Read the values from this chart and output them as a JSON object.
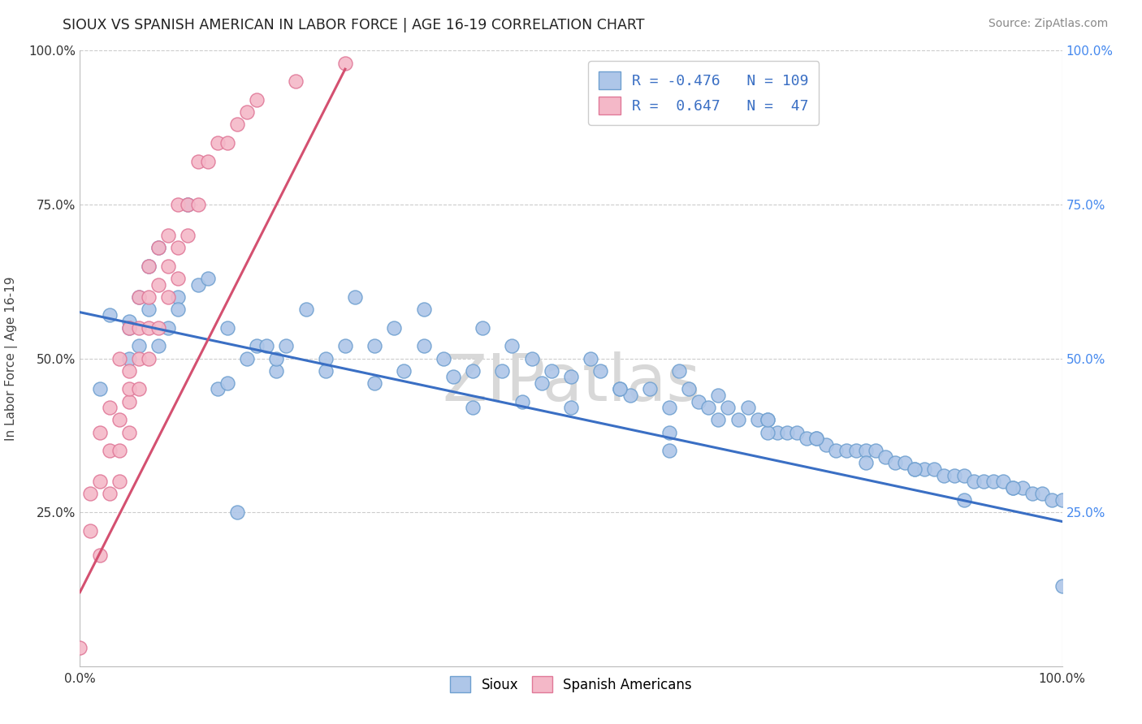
{
  "title": "SIOUX VS SPANISH AMERICAN IN LABOR FORCE | AGE 16-19 CORRELATION CHART",
  "source": "Source: ZipAtlas.com",
  "ylabel": "In Labor Force | Age 16-19",
  "xlim": [
    0.0,
    1.0
  ],
  "ylim": [
    0.0,
    1.0
  ],
  "sioux_R": -0.476,
  "sioux_N": 109,
  "spanish_R": 0.647,
  "spanish_N": 47,
  "sioux_color": "#aec6e8",
  "sioux_edge": "#6fa0d0",
  "spanish_color": "#f4b8c8",
  "spanish_edge": "#e07898",
  "sioux_line_color": "#3a6fc4",
  "spanish_line_color": "#d45070",
  "watermark_color": "#d8d8d8",
  "background_color": "#ffffff",
  "grid_color": "#cccccc",
  "right_tick_color": "#4488ee",
  "sioux_x": [
    0.02,
    0.03,
    0.05,
    0.05,
    0.06,
    0.06,
    0.07,
    0.07,
    0.08,
    0.08,
    0.09,
    0.1,
    0.1,
    0.11,
    0.12,
    0.13,
    0.14,
    0.15,
    0.16,
    0.17,
    0.18,
    0.19,
    0.2,
    0.21,
    0.23,
    0.25,
    0.27,
    0.28,
    0.3,
    0.32,
    0.33,
    0.35,
    0.37,
    0.38,
    0.4,
    0.41,
    0.43,
    0.44,
    0.46,
    0.47,
    0.48,
    0.5,
    0.52,
    0.53,
    0.55,
    0.56,
    0.58,
    0.6,
    0.61,
    0.62,
    0.63,
    0.64,
    0.65,
    0.66,
    0.67,
    0.68,
    0.69,
    0.7,
    0.71,
    0.72,
    0.73,
    0.74,
    0.75,
    0.76,
    0.77,
    0.78,
    0.79,
    0.8,
    0.81,
    0.82,
    0.83,
    0.84,
    0.85,
    0.86,
    0.87,
    0.88,
    0.89,
    0.9,
    0.91,
    0.92,
    0.93,
    0.94,
    0.95,
    0.96,
    0.97,
    0.98,
    0.99,
    1.0,
    0.65,
    0.7,
    0.35,
    0.45,
    0.55,
    0.25,
    0.15,
    0.05,
    0.75,
    0.85,
    0.95,
    0.4,
    0.5,
    0.6,
    0.2,
    0.3,
    0.8,
    0.9,
    1.0,
    0.7,
    0.6
  ],
  "sioux_y": [
    0.45,
    0.57,
    0.56,
    0.55,
    0.6,
    0.52,
    0.65,
    0.58,
    0.52,
    0.68,
    0.55,
    0.6,
    0.58,
    0.75,
    0.62,
    0.63,
    0.45,
    0.55,
    0.25,
    0.5,
    0.52,
    0.52,
    0.48,
    0.52,
    0.58,
    0.5,
    0.52,
    0.6,
    0.46,
    0.55,
    0.48,
    0.58,
    0.5,
    0.47,
    0.48,
    0.55,
    0.48,
    0.52,
    0.5,
    0.46,
    0.48,
    0.47,
    0.5,
    0.48,
    0.45,
    0.44,
    0.45,
    0.42,
    0.48,
    0.45,
    0.43,
    0.42,
    0.4,
    0.42,
    0.4,
    0.42,
    0.4,
    0.4,
    0.38,
    0.38,
    0.38,
    0.37,
    0.37,
    0.36,
    0.35,
    0.35,
    0.35,
    0.35,
    0.35,
    0.34,
    0.33,
    0.33,
    0.32,
    0.32,
    0.32,
    0.31,
    0.31,
    0.31,
    0.3,
    0.3,
    0.3,
    0.3,
    0.29,
    0.29,
    0.28,
    0.28,
    0.27,
    0.27,
    0.44,
    0.38,
    0.52,
    0.43,
    0.45,
    0.48,
    0.46,
    0.5,
    0.37,
    0.32,
    0.29,
    0.42,
    0.42,
    0.35,
    0.5,
    0.52,
    0.33,
    0.27,
    0.13,
    0.4,
    0.38
  ],
  "spanish_x": [
    0.0,
    0.01,
    0.01,
    0.02,
    0.02,
    0.02,
    0.03,
    0.03,
    0.03,
    0.04,
    0.04,
    0.04,
    0.04,
    0.05,
    0.05,
    0.05,
    0.05,
    0.05,
    0.06,
    0.06,
    0.06,
    0.06,
    0.07,
    0.07,
    0.07,
    0.07,
    0.08,
    0.08,
    0.08,
    0.09,
    0.09,
    0.09,
    0.1,
    0.1,
    0.1,
    0.11,
    0.11,
    0.12,
    0.12,
    0.13,
    0.14,
    0.15,
    0.16,
    0.17,
    0.18,
    0.22,
    0.27
  ],
  "spanish_y": [
    0.03,
    0.22,
    0.28,
    0.18,
    0.3,
    0.38,
    0.28,
    0.35,
    0.42,
    0.3,
    0.35,
    0.4,
    0.5,
    0.38,
    0.43,
    0.48,
    0.55,
    0.45,
    0.45,
    0.5,
    0.55,
    0.6,
    0.5,
    0.55,
    0.6,
    0.65,
    0.55,
    0.62,
    0.68,
    0.6,
    0.65,
    0.7,
    0.63,
    0.68,
    0.75,
    0.7,
    0.75,
    0.75,
    0.82,
    0.82,
    0.85,
    0.85,
    0.88,
    0.9,
    0.92,
    0.95,
    0.98
  ],
  "sioux_line_x": [
    0.0,
    1.0
  ],
  "sioux_line_y": [
    0.575,
    0.235
  ],
  "spanish_line_x": [
    0.0,
    0.27
  ],
  "spanish_line_y": [
    0.12,
    0.97
  ]
}
